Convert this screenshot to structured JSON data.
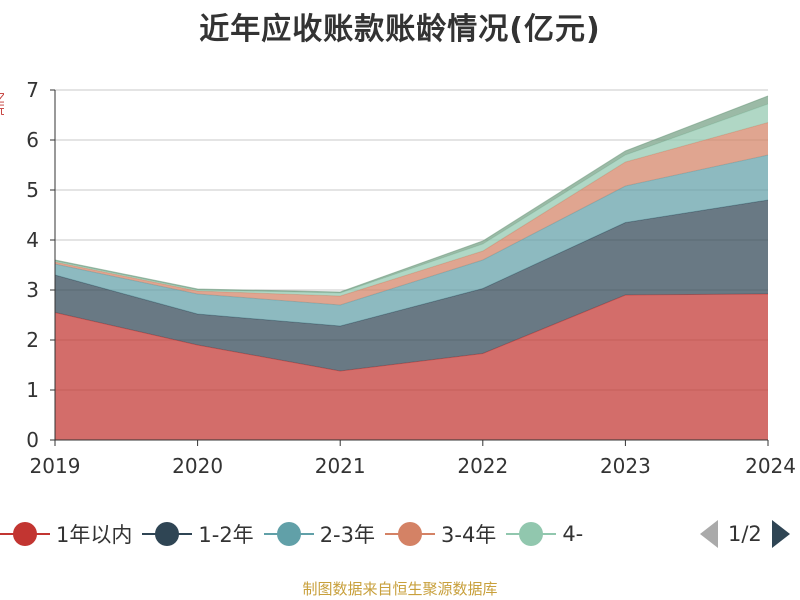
{
  "chart_data": {
    "type": "area",
    "stacked": true,
    "title": "近年应收账款账龄情况(亿元)",
    "categories": [
      "2019",
      "2020",
      "2021",
      "2022",
      "2023",
      "2024"
    ],
    "ylim": [
      0,
      7
    ],
    "yticks": [
      "0",
      "1",
      "2",
      "3",
      "4",
      "5",
      "6",
      "7"
    ],
    "series": [
      {
        "name": "1年以内",
        "color": "#c23531",
        "values": [
          2.55,
          1.9,
          1.38,
          1.73,
          2.9,
          2.92
        ]
      },
      {
        "name": "1-2年",
        "color": "#2f4554",
        "values": [
          0.75,
          0.62,
          0.9,
          1.3,
          1.45,
          1.88
        ]
      },
      {
        "name": "2-3年",
        "color": "#61a0a8",
        "values": [
          0.22,
          0.4,
          0.42,
          0.57,
          0.73,
          0.9
        ]
      },
      {
        "name": "3-4年",
        "color": "#d48265",
        "values": [
          0.04,
          0.06,
          0.18,
          0.18,
          0.48,
          0.65
        ]
      },
      {
        "name": "4-",
        "color": "#91c7ae",
        "values": [
          0.02,
          0.02,
          0.06,
          0.14,
          0.14,
          0.37
        ]
      },
      {
        "color": "#749f83",
        "values": [
          0.02,
          0.02,
          0.02,
          0.06,
          0.08,
          0.16
        ]
      }
    ]
  },
  "legend": {
    "items": [
      {
        "label": "1年以内",
        "color": "#c23531"
      },
      {
        "label": "1-2年",
        "color": "#2f4554"
      },
      {
        "label": "2-3年",
        "color": "#61a0a8"
      },
      {
        "label": "3-4年",
        "color": "#d48265"
      },
      {
        "label": "4-",
        "color": "#91c7ae"
      }
    ],
    "page_text": "1/2"
  },
  "y_axis_unit": "亿元",
  "footer": {
    "source": "制图数据来自恒生聚源数据库"
  }
}
